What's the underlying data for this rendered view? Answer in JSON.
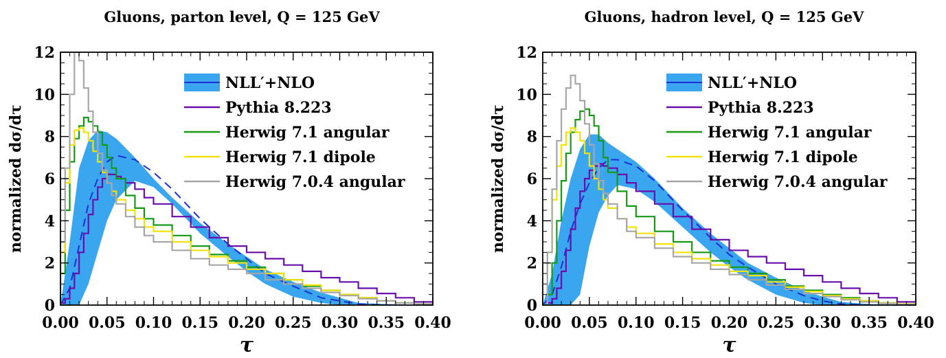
{
  "colors": {
    "band": "#39a6ef",
    "central": "#1a2fd6",
    "pythia": "#6a0dad",
    "herwig_angular": "#169a16",
    "herwig_dipole": "#f2e20a",
    "herwig_704": "#a6a6a6"
  },
  "chart_data": [
    {
      "type": "line",
      "title": "Gluons, parton level, Q = 125 GeV",
      "xlabel": "τ",
      "ylabel": "normalized dσ/dτ",
      "xlim": [
        0,
        0.4
      ],
      "ylim": [
        0,
        12
      ],
      "xticks": [
        "0.00",
        "0.05",
        "0.10",
        "0.15",
        "0.20",
        "0.25",
        "0.30",
        "0.35",
        "0.40"
      ],
      "yticks": [
        "0",
        "2",
        "4",
        "6",
        "8",
        "10",
        "12"
      ],
      "legend_position": "top-right",
      "series": [
        {
          "name": "NLL′+NLO",
          "kind": "band",
          "x": [
            0.0,
            0.01,
            0.02,
            0.03,
            0.04,
            0.05,
            0.06,
            0.08,
            0.1,
            0.12,
            0.15,
            0.18,
            0.2,
            0.22,
            0.25,
            0.28,
            0.3,
            0.32,
            0.35,
            0.38,
            0.4
          ],
          "upper": [
            0.0,
            3.0,
            6.5,
            7.8,
            8.3,
            8.2,
            7.9,
            7.0,
            6.0,
            5.1,
            3.9,
            2.9,
            2.3,
            1.7,
            1.1,
            0.6,
            0.35,
            0.1,
            0.05,
            0.02,
            0.0
          ],
          "lower": [
            0.0,
            0.0,
            0.0,
            1.0,
            2.5,
            4.0,
            5.0,
            5.9,
            5.6,
            4.8,
            3.4,
            2.3,
            1.6,
            1.0,
            0.4,
            0.1,
            0.0,
            0.0,
            0.0,
            0.0,
            0.0
          ],
          "central": [
            0.0,
            0.8,
            2.8,
            4.8,
            6.0,
            6.8,
            7.1,
            6.9,
            6.3,
            5.5,
            4.1,
            2.9,
            2.2,
            1.5,
            0.9,
            0.35,
            0.2,
            0.05,
            0.0,
            0.0,
            0.0
          ]
        },
        {
          "name": "Pythia 8.223",
          "kind": "step",
          "x": [
            0.0,
            0.005,
            0.01,
            0.015,
            0.02,
            0.025,
            0.03,
            0.035,
            0.04,
            0.045,
            0.05,
            0.055,
            0.06,
            0.065,
            0.07,
            0.08,
            0.09,
            0.1,
            0.12,
            0.14,
            0.16,
            0.18,
            0.2,
            0.22,
            0.24,
            0.26,
            0.28,
            0.3,
            0.32,
            0.34,
            0.36,
            0.38,
            0.4
          ],
          "y": [
            0.1,
            0.3,
            0.8,
            1.5,
            2.5,
            3.4,
            4.3,
            5.0,
            5.6,
            6.0,
            6.2,
            6.2,
            6.1,
            6.0,
            5.8,
            5.5,
            5.1,
            4.8,
            4.2,
            3.7,
            3.2,
            2.8,
            2.5,
            2.2,
            1.9,
            1.6,
            1.3,
            1.1,
            0.8,
            0.55,
            0.35,
            0.15,
            0.05
          ]
        },
        {
          "name": "Herwig 7.1 angular",
          "kind": "step",
          "x": [
            0.0,
            0.005,
            0.01,
            0.015,
            0.02,
            0.025,
            0.03,
            0.035,
            0.04,
            0.045,
            0.05,
            0.055,
            0.06,
            0.07,
            0.08,
            0.09,
            0.1,
            0.12,
            0.14,
            0.16,
            0.18,
            0.2,
            0.22,
            0.24,
            0.26,
            0.28,
            0.3,
            0.32,
            0.34,
            0.36,
            0.38,
            0.4
          ],
          "y": [
            1.5,
            4.5,
            6.8,
            7.9,
            8.5,
            8.9,
            8.7,
            8.5,
            8.2,
            7.6,
            7.0,
            6.5,
            6.0,
            5.2,
            4.6,
            4.1,
            3.8,
            3.3,
            2.8,
            2.4,
            2.1,
            1.8,
            1.5,
            1.2,
            0.9,
            0.7,
            0.5,
            0.35,
            0.2,
            0.1,
            0.05,
            0.0
          ]
        },
        {
          "name": "Herwig 7.1 dipole",
          "kind": "step",
          "x": [
            0.0,
            0.005,
            0.01,
            0.015,
            0.02,
            0.025,
            0.03,
            0.035,
            0.04,
            0.045,
            0.05,
            0.055,
            0.06,
            0.07,
            0.08,
            0.09,
            0.1,
            0.12,
            0.14,
            0.16,
            0.18,
            0.2,
            0.22,
            0.24,
            0.26,
            0.28,
            0.3,
            0.32,
            0.34,
            0.36,
            0.38,
            0.4
          ],
          "y": [
            2.5,
            5.8,
            7.6,
            8.3,
            8.4,
            8.2,
            7.8,
            7.3,
            6.8,
            6.3,
            5.8,
            5.4,
            5.0,
            4.5,
            4.1,
            3.7,
            3.5,
            3.0,
            2.6,
            2.3,
            2.0,
            1.7,
            1.5,
            1.2,
            0.95,
            0.7,
            0.5,
            0.35,
            0.2,
            0.1,
            0.05,
            0.0
          ]
        },
        {
          "name": "Herwig 7.0.4 angular",
          "kind": "step",
          "x": [
            0.0,
            0.005,
            0.01,
            0.015,
            0.02,
            0.025,
            0.03,
            0.035,
            0.04,
            0.045,
            0.05,
            0.055,
            0.06,
            0.07,
            0.08,
            0.09,
            0.1,
            0.12,
            0.14,
            0.16,
            0.18,
            0.2,
            0.22,
            0.24,
            0.26,
            0.28,
            0.3,
            0.32,
            0.34,
            0.36,
            0.38,
            0.4
          ],
          "y": [
            3.0,
            6.5,
            10.0,
            12.0,
            11.6,
            10.3,
            9.2,
            8.2,
            7.2,
            6.4,
            5.8,
            5.2,
            4.8,
            4.2,
            3.7,
            3.3,
            3.0,
            2.6,
            2.2,
            1.9,
            1.7,
            1.5,
            1.2,
            1.0,
            0.8,
            0.6,
            0.45,
            0.3,
            0.2,
            0.1,
            0.05,
            0.0
          ]
        }
      ]
    },
    {
      "type": "line",
      "title": "Gluons, hadron level, Q = 125 GeV",
      "xlabel": "τ",
      "ylabel": "normalized dσ/dτ",
      "xlim": [
        0,
        0.4
      ],
      "ylim": [
        0,
        12
      ],
      "xticks": [
        "0.00",
        "0.05",
        "0.10",
        "0.15",
        "0.20",
        "0.25",
        "0.30",
        "0.35",
        "0.40"
      ],
      "yticks": [
        "0",
        "2",
        "4",
        "6",
        "8",
        "10",
        "12"
      ],
      "legend_position": "top-right",
      "series": [
        {
          "name": "NLL′+NLO",
          "kind": "band",
          "x": [
            0.0,
            0.01,
            0.02,
            0.03,
            0.04,
            0.05,
            0.06,
            0.07,
            0.08,
            0.1,
            0.12,
            0.15,
            0.18,
            0.2,
            0.22,
            0.25,
            0.28,
            0.3,
            0.32,
            0.35,
            0.38,
            0.4
          ],
          "upper": [
            0.0,
            1.5,
            4.0,
            6.0,
            7.4,
            8.1,
            8.1,
            7.7,
            7.4,
            6.8,
            6.0,
            4.6,
            3.4,
            2.7,
            2.0,
            1.3,
            0.7,
            0.4,
            0.15,
            0.05,
            0.02,
            0.0
          ],
          "lower": [
            0.0,
            0.0,
            0.0,
            0.0,
            0.5,
            2.8,
            4.4,
            5.2,
            5.7,
            5.5,
            4.9,
            3.7,
            2.5,
            1.8,
            1.2,
            0.5,
            0.1,
            0.0,
            0.0,
            0.0,
            0.0,
            0.0
          ],
          "central": [
            0.0,
            0.5,
            1.8,
            3.5,
            4.8,
            5.8,
            6.5,
            6.9,
            6.9,
            6.6,
            5.9,
            4.5,
            3.2,
            2.4,
            1.8,
            1.0,
            0.45,
            0.2,
            0.05,
            0.0,
            0.0,
            0.0
          ]
        },
        {
          "name": "Pythia 8.223",
          "kind": "step",
          "x": [
            0.0,
            0.005,
            0.01,
            0.015,
            0.02,
            0.025,
            0.03,
            0.035,
            0.04,
            0.045,
            0.05,
            0.055,
            0.06,
            0.065,
            0.07,
            0.08,
            0.09,
            0.1,
            0.12,
            0.14,
            0.16,
            0.18,
            0.2,
            0.22,
            0.24,
            0.26,
            0.28,
            0.3,
            0.32,
            0.34,
            0.36,
            0.38,
            0.4
          ],
          "y": [
            0.0,
            0.1,
            0.3,
            0.8,
            1.6,
            2.6,
            3.6,
            4.6,
            5.4,
            6.0,
            6.4,
            6.6,
            6.7,
            6.6,
            6.5,
            6.2,
            5.8,
            5.4,
            4.8,
            4.2,
            3.6,
            3.1,
            2.6,
            2.3,
            2.0,
            1.7,
            1.4,
            1.1,
            0.8,
            0.55,
            0.35,
            0.15,
            0.05
          ]
        },
        {
          "name": "Herwig 7.1 angular",
          "kind": "step",
          "x": [
            0.0,
            0.005,
            0.01,
            0.015,
            0.02,
            0.025,
            0.03,
            0.035,
            0.04,
            0.045,
            0.05,
            0.055,
            0.06,
            0.065,
            0.07,
            0.08,
            0.09,
            0.1,
            0.12,
            0.14,
            0.16,
            0.18,
            0.2,
            0.22,
            0.24,
            0.26,
            0.28,
            0.3,
            0.32,
            0.34,
            0.36,
            0.38,
            0.4
          ],
          "y": [
            0.0,
            0.5,
            2.0,
            4.0,
            5.9,
            7.2,
            8.2,
            8.8,
            9.2,
            9.3,
            9.0,
            8.5,
            7.8,
            7.0,
            6.3,
            5.4,
            4.7,
            4.2,
            3.5,
            3.0,
            2.5,
            2.1,
            1.8,
            1.5,
            1.2,
            0.9,
            0.7,
            0.5,
            0.35,
            0.2,
            0.1,
            0.05,
            0.0
          ]
        },
        {
          "name": "Herwig 7.1 dipole",
          "kind": "step",
          "x": [
            0.0,
            0.005,
            0.01,
            0.015,
            0.02,
            0.025,
            0.03,
            0.035,
            0.04,
            0.045,
            0.05,
            0.055,
            0.06,
            0.065,
            0.07,
            0.08,
            0.09,
            0.1,
            0.12,
            0.14,
            0.16,
            0.18,
            0.2,
            0.22,
            0.24,
            0.26,
            0.28,
            0.3,
            0.32,
            0.34,
            0.36,
            0.38,
            0.4
          ],
          "y": [
            0.0,
            2.5,
            5.0,
            6.6,
            7.6,
            8.2,
            8.4,
            8.2,
            7.8,
            7.2,
            6.6,
            6.0,
            5.5,
            5.0,
            4.6,
            4.1,
            3.7,
            3.4,
            2.9,
            2.5,
            2.2,
            1.9,
            1.6,
            1.4,
            1.1,
            0.85,
            0.65,
            0.45,
            0.3,
            0.2,
            0.1,
            0.05,
            0.0
          ]
        },
        {
          "name": "Herwig 7.0.4 angular",
          "kind": "step",
          "x": [
            0.0,
            0.005,
            0.01,
            0.015,
            0.02,
            0.025,
            0.03,
            0.035,
            0.04,
            0.045,
            0.05,
            0.055,
            0.06,
            0.065,
            0.07,
            0.08,
            0.09,
            0.1,
            0.12,
            0.14,
            0.16,
            0.18,
            0.2,
            0.22,
            0.24,
            0.26,
            0.28,
            0.3,
            0.32,
            0.34,
            0.36,
            0.38,
            0.4
          ],
          "y": [
            0.0,
            2.5,
            5.5,
            7.8,
            9.3,
            10.3,
            10.9,
            10.5,
            9.7,
            8.6,
            7.6,
            6.7,
            5.9,
            5.3,
            4.8,
            4.1,
            3.5,
            3.2,
            2.7,
            2.3,
            2.0,
            1.7,
            1.45,
            1.2,
            0.95,
            0.75,
            0.55,
            0.4,
            0.25,
            0.15,
            0.08,
            0.03,
            0.0
          ]
        }
      ]
    }
  ]
}
